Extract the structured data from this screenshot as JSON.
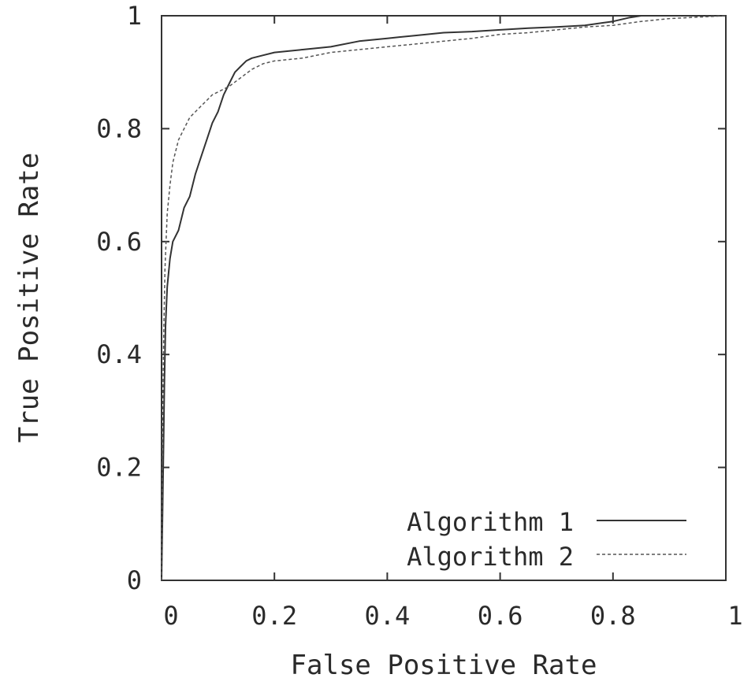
{
  "chart_data": {
    "type": "line",
    "title": "",
    "xlabel": "False Positive Rate",
    "ylabel": "True Positive Rate",
    "xlim": [
      0,
      1
    ],
    "ylim": [
      0,
      1
    ],
    "x_ticks": [
      "0",
      "0.2",
      "0.4",
      "0.6",
      "0.8",
      "1"
    ],
    "y_ticks": [
      "0",
      "0.2",
      "0.4",
      "0.6",
      "0.8",
      "1"
    ],
    "grid": false,
    "legend_position": "bottom-right",
    "series": [
      {
        "name": "Algorithm 1",
        "style": "solid",
        "color": "#333333",
        "x": [
          0,
          0.003,
          0.005,
          0.007,
          0.01,
          0.015,
          0.02,
          0.03,
          0.04,
          0.05,
          0.06,
          0.07,
          0.08,
          0.09,
          0.1,
          0.11,
          0.12,
          0.13,
          0.14,
          0.15,
          0.16,
          0.18,
          0.2,
          0.25,
          0.3,
          0.35,
          0.4,
          0.45,
          0.5,
          0.55,
          0.6,
          0.65,
          0.7,
          0.75,
          0.8,
          0.83,
          0.85,
          0.9,
          1.0
        ],
        "y": [
          0,
          0.2,
          0.35,
          0.45,
          0.52,
          0.57,
          0.6,
          0.62,
          0.66,
          0.68,
          0.72,
          0.75,
          0.78,
          0.81,
          0.83,
          0.86,
          0.88,
          0.9,
          0.91,
          0.92,
          0.925,
          0.93,
          0.935,
          0.94,
          0.945,
          0.955,
          0.96,
          0.965,
          0.97,
          0.972,
          0.975,
          0.978,
          0.98,
          0.983,
          0.99,
          0.997,
          1.0,
          1.0,
          1.0
        ]
      },
      {
        "name": "Algorithm 2",
        "style": "dashed",
        "color": "#555555",
        "x": [
          0,
          0.002,
          0.004,
          0.006,
          0.008,
          0.01,
          0.015,
          0.02,
          0.03,
          0.04,
          0.05,
          0.06,
          0.07,
          0.08,
          0.09,
          0.1,
          0.12,
          0.14,
          0.16,
          0.18,
          0.2,
          0.25,
          0.3,
          0.35,
          0.4,
          0.45,
          0.5,
          0.55,
          0.6,
          0.65,
          0.7,
          0.75,
          0.8,
          0.85,
          0.9,
          1.0
        ],
        "y": [
          0,
          0.3,
          0.45,
          0.55,
          0.6,
          0.65,
          0.7,
          0.74,
          0.78,
          0.8,
          0.82,
          0.83,
          0.84,
          0.85,
          0.86,
          0.865,
          0.875,
          0.89,
          0.905,
          0.915,
          0.92,
          0.925,
          0.935,
          0.94,
          0.945,
          0.95,
          0.955,
          0.96,
          0.967,
          0.97,
          0.975,
          0.98,
          0.983,
          0.99,
          0.995,
          1.0
        ]
      }
    ]
  }
}
